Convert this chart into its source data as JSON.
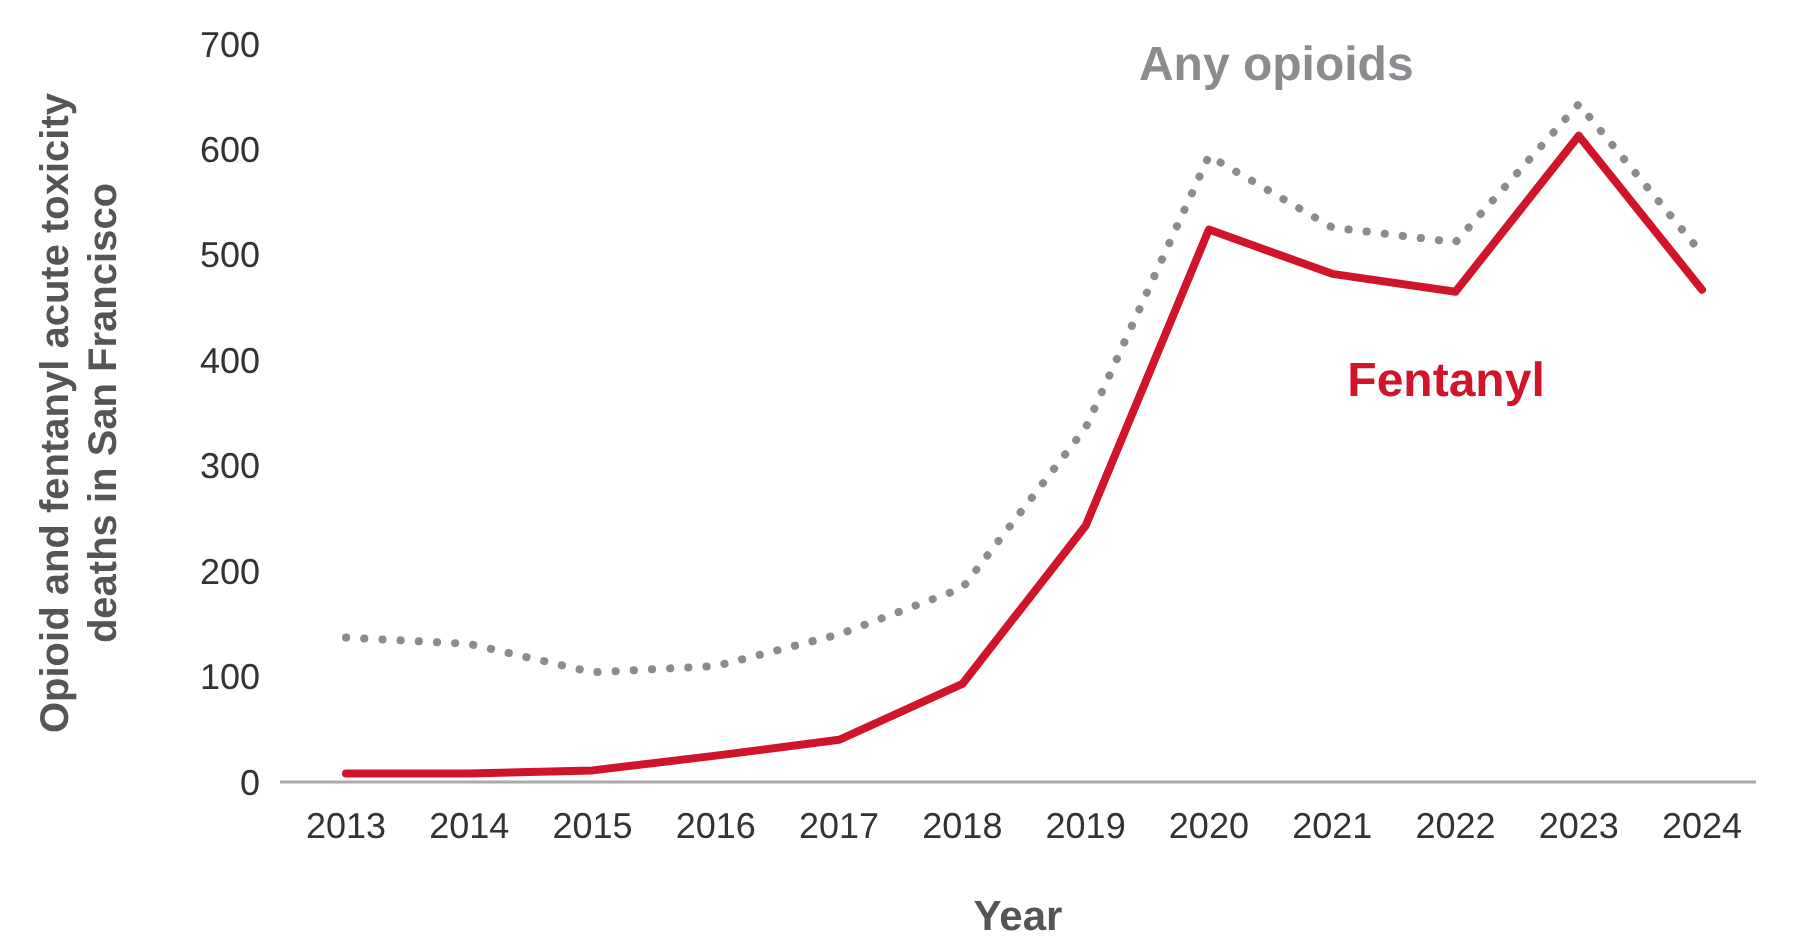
{
  "chart_data": {
    "type": "line",
    "xlabel": "Year",
    "ylabel": "Opioid and fentanyl acute toxicity deaths in San Francisco",
    "categories": [
      "2013",
      "2014",
      "2015",
      "2016",
      "2017",
      "2018",
      "2019",
      "2020",
      "2021",
      "2022",
      "2023",
      "2024"
    ],
    "ylim": [
      0,
      700
    ],
    "yticks": [
      0,
      100,
      200,
      300,
      400,
      500,
      600,
      700
    ],
    "marker": "none",
    "series": [
      {
        "name": "Any opioids",
        "color": "#8c8c90",
        "line_style": "dotted",
        "values": [
          137,
          131,
          104,
          110,
          140,
          184,
          336,
          594,
          526,
          512,
          643,
          501
        ]
      },
      {
        "name": "Fentanyl",
        "color": "#d0152b",
        "line_style": "solid",
        "values": [
          8,
          8,
          11,
          25,
          40,
          93,
          243,
          524,
          482,
          465,
          613,
          467
        ]
      }
    ]
  }
}
